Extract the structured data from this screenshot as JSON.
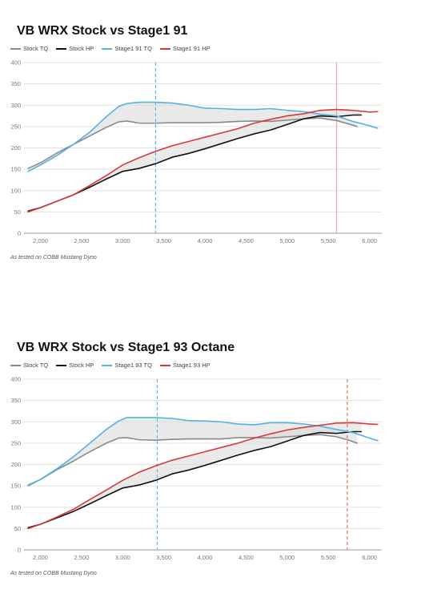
{
  "chart_data": [
    {
      "type": "line",
      "title": "VB WRX Stock vs Stage1 91",
      "footnote": "As tested on COBB Mustang Dyno",
      "xlim": [
        1800,
        6150
      ],
      "ylim": [
        0,
        400
      ],
      "x_ticks": [
        2000,
        2500,
        3000,
        3500,
        4000,
        4500,
        5000,
        5500,
        6000
      ],
      "x_tick_labels": [
        "2,000",
        "2,500",
        "3,000",
        "3,500",
        "4,000",
        "4,500",
        "5,000",
        "5,500",
        "6,000"
      ],
      "y_ticks": [
        0,
        50,
        100,
        150,
        200,
        250,
        300,
        350,
        400
      ],
      "y_tick_labels": [
        "0",
        "50",
        "100",
        "150",
        "200",
        "250",
        "300",
        "350",
        "400"
      ],
      "grid": true,
      "legend_position": "top-left",
      "fill_between": [
        "Stock TQ",
        "Stage1 91 TQ"
      ],
      "fill_between_2": [
        "Stock HP",
        "Stage1 91 HP"
      ],
      "vlines": [
        {
          "x": 3400,
          "color": "#63b6e8",
          "style": "dashed"
        },
        {
          "x": 5600,
          "color": "#e8a79f",
          "style": "solid"
        }
      ],
      "series": [
        {
          "name": "Stock TQ",
          "color": "#8a8a8a",
          "x": [
            1850,
            2000,
            2200,
            2400,
            2600,
            2800,
            2950,
            3050,
            3200,
            3400,
            3600,
            3800,
            4000,
            4200,
            4400,
            4600,
            4800,
            5000,
            5200,
            5400,
            5600,
            5750,
            5850
          ],
          "y": [
            152,
            165,
            188,
            208,
            228,
            248,
            261,
            263,
            258,
            258,
            259,
            259,
            259,
            260,
            262,
            263,
            262,
            265,
            268,
            270,
            264,
            256,
            250
          ]
        },
        {
          "name": "Stock HP",
          "color": "#111111",
          "x": [
            1850,
            2000,
            2200,
            2400,
            2600,
            2800,
            3000,
            3200,
            3400,
            3600,
            3800,
            4000,
            4200,
            4400,
            4600,
            4800,
            5000,
            5200,
            5400,
            5600,
            5800,
            5900
          ],
          "y": [
            52,
            60,
            75,
            90,
            108,
            127,
            145,
            152,
            163,
            178,
            187,
            198,
            210,
            222,
            233,
            242,
            255,
            268,
            275,
            273,
            277,
            277
          ]
        },
        {
          "name": "Stage1 91 TQ",
          "color": "#52b4e0",
          "x": [
            1850,
            2000,
            2200,
            2400,
            2600,
            2800,
            2950,
            3050,
            3200,
            3400,
            3600,
            3800,
            4000,
            4200,
            4400,
            4600,
            4800,
            5000,
            5200,
            5400,
            5600,
            5800,
            6000,
            6100
          ],
          "y": [
            145,
            160,
            182,
            208,
            237,
            273,
            297,
            304,
            307,
            307,
            305,
            300,
            293,
            292,
            290,
            290,
            292,
            288,
            285,
            279,
            275,
            262,
            252,
            246
          ]
        },
        {
          "name": "Stage1 91 HP",
          "color": "#d9373a",
          "x": [
            1850,
            2000,
            2200,
            2400,
            2600,
            2800,
            3000,
            3200,
            3400,
            3600,
            3800,
            4000,
            4200,
            4400,
            4600,
            4800,
            5000,
            5200,
            5400,
            5600,
            5800,
            6000,
            6100
          ],
          "y": [
            50,
            60,
            75,
            90,
            112,
            135,
            160,
            177,
            192,
            205,
            215,
            225,
            235,
            245,
            258,
            267,
            275,
            280,
            288,
            290,
            288,
            284,
            285
          ]
        }
      ]
    },
    {
      "type": "line",
      "title": "VB WRX Stock vs Stage1 93 Octane",
      "footnote": "As tested on COBB Mustang Dyno",
      "xlim": [
        1800,
        6150
      ],
      "ylim": [
        0,
        400
      ],
      "x_ticks": [
        2000,
        2500,
        3000,
        3500,
        4000,
        4500,
        5000,
        5500,
        6000
      ],
      "x_tick_labels": [
        "2,000",
        "2,500",
        "3,000",
        "3,500",
        "4,000",
        "4,500",
        "5,000",
        "5,500",
        "6,000"
      ],
      "y_ticks": [
        0,
        50,
        100,
        150,
        200,
        250,
        300,
        350,
        400
      ],
      "y_tick_labels": [
        "0",
        "50",
        "100",
        "150",
        "200",
        "250",
        "300",
        "350",
        "400"
      ],
      "grid": true,
      "legend_position": "top-left",
      "fill_between": [
        "Stock TQ",
        "Stage1 93 TQ"
      ],
      "fill_between_2": [
        "Stock HP",
        "Stage1 93 HP"
      ],
      "vlines": [
        {
          "x": 3420,
          "color": "#63b6e8",
          "style": "dashed"
        },
        {
          "x": 5730,
          "color": "#e07060",
          "style": "dashed"
        }
      ],
      "series": [
        {
          "name": "Stock TQ",
          "color": "#8a8a8a",
          "x": [
            1850,
            2000,
            2200,
            2400,
            2600,
            2800,
            2950,
            3050,
            3200,
            3400,
            3600,
            3800,
            4000,
            4200,
            4400,
            4600,
            4800,
            5000,
            5200,
            5400,
            5600,
            5750,
            5850
          ],
          "y": [
            152,
            165,
            188,
            208,
            230,
            250,
            262,
            263,
            258,
            257,
            259,
            260,
            260,
            260,
            263,
            263,
            262,
            265,
            268,
            270,
            265,
            257,
            250
          ]
        },
        {
          "name": "Stock HP",
          "color": "#111111",
          "x": [
            1850,
            2000,
            2200,
            2400,
            2600,
            2800,
            3000,
            3200,
            3400,
            3600,
            3800,
            4000,
            4200,
            4400,
            4600,
            4800,
            5000,
            5200,
            5400,
            5600,
            5800,
            5900
          ],
          "y": [
            52,
            60,
            75,
            90,
            108,
            127,
            145,
            152,
            163,
            178,
            187,
            198,
            210,
            222,
            233,
            242,
            255,
            268,
            275,
            273,
            277,
            277
          ]
        },
        {
          "name": "Stage1 93 TQ",
          "color": "#52b4e0",
          "x": [
            1850,
            2000,
            2200,
            2400,
            2600,
            2800,
            2950,
            3050,
            3200,
            3400,
            3600,
            3800,
            4000,
            4200,
            4400,
            4600,
            4800,
            5000,
            5200,
            5400,
            5600,
            5800,
            6000,
            6100
          ],
          "y": [
            150,
            165,
            190,
            218,
            250,
            282,
            302,
            310,
            310,
            310,
            308,
            303,
            302,
            300,
            295,
            293,
            298,
            298,
            295,
            290,
            282,
            275,
            262,
            256
          ]
        },
        {
          "name": "Stage1 93 HP",
          "color": "#d9373a",
          "x": [
            1850,
            2000,
            2200,
            2400,
            2600,
            2800,
            3000,
            3200,
            3400,
            3600,
            3800,
            4000,
            4200,
            4400,
            4600,
            4800,
            5000,
            5200,
            5400,
            5600,
            5800,
            6000,
            6100
          ],
          "y": [
            50,
            60,
            77,
            95,
            118,
            140,
            163,
            182,
            197,
            210,
            220,
            230,
            240,
            250,
            262,
            272,
            281,
            287,
            292,
            297,
            298,
            295,
            294
          ]
        }
      ]
    }
  ]
}
